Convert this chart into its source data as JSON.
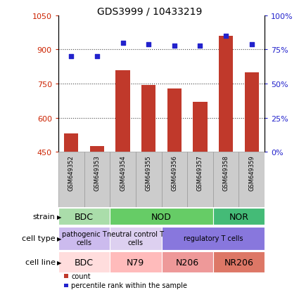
{
  "title": "GDS3999 / 10433219",
  "samples": [
    "GSM649352",
    "GSM649353",
    "GSM649354",
    "GSM649355",
    "GSM649356",
    "GSM649357",
    "GSM649358",
    "GSM649359"
  ],
  "counts": [
    530,
    475,
    810,
    745,
    730,
    670,
    960,
    800
  ],
  "percentiles": [
    70,
    70,
    80,
    79,
    78,
    78,
    85,
    79
  ],
  "ylim_left": [
    450,
    1050
  ],
  "ylim_right": [
    0,
    100
  ],
  "yticks_left": [
    450,
    600,
    750,
    900,
    1050
  ],
  "yticks_right": [
    0,
    25,
    50,
    75,
    100
  ],
  "bar_color": "#c0392b",
  "dot_color": "#2222cc",
  "grid_color": "#444444",
  "left_tick_color": "#cc2200",
  "right_tick_color": "#2222cc",
  "bg_color": "#ffffff",
  "strain_row": {
    "label": "strain",
    "groups": [
      {
        "text": "BDC",
        "start": 0,
        "end": 2,
        "color": "#aaddaa"
      },
      {
        "text": "NOD",
        "start": 2,
        "end": 6,
        "color": "#66cc66"
      },
      {
        "text": "NOR",
        "start": 6,
        "end": 8,
        "color": "#44bb77"
      }
    ]
  },
  "cell_type_row": {
    "label": "cell type",
    "groups": [
      {
        "text": "pathogenic T\ncells",
        "start": 0,
        "end": 2,
        "color": "#ccbbee"
      },
      {
        "text": "neutral control T\ncells",
        "start": 2,
        "end": 4,
        "color": "#ddd0f0"
      },
      {
        "text": "regulatory T cells",
        "start": 4,
        "end": 8,
        "color": "#8877dd"
      }
    ]
  },
  "cell_line_row": {
    "label": "cell line",
    "groups": [
      {
        "text": "BDC",
        "start": 0,
        "end": 2,
        "color": "#ffdddd"
      },
      {
        "text": "N79",
        "start": 2,
        "end": 4,
        "color": "#ffbbbb"
      },
      {
        "text": "N206",
        "start": 4,
        "end": 6,
        "color": "#ee9999"
      },
      {
        "text": "NR206",
        "start": 6,
        "end": 8,
        "color": "#dd7766"
      }
    ]
  },
  "legend_items": [
    {
      "color": "#c0392b",
      "label": "count"
    },
    {
      "color": "#2222cc",
      "label": "percentile rank within the sample"
    }
  ],
  "sample_box_color": "#cccccc",
  "sample_box_edge": "#999999"
}
